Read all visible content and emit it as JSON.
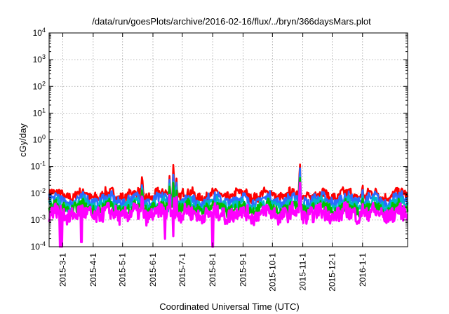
{
  "chart_data": {
    "type": "line",
    "title": "/data/run/goesPlots/archive/2016-02-16/flux/../bryn/366daysMars.plot",
    "xlabel": "Coordinated Universal Time (UTC)",
    "ylabel": "cGy/day",
    "xlim": [
      "2015-02-15",
      "2016-02-16"
    ],
    "ylim": [
      0.0001,
      10000
    ],
    "yscale": "log",
    "grid": true,
    "x_ticks": [
      "2015-3-1",
      "2015-4-1",
      "2015-5-1",
      "2015-6-1",
      "2015-7-1",
      "2015-8-1",
      "2015-9-1",
      "2015-10-1",
      "2015-11-1",
      "2015-12-1",
      "2016-1-1"
    ],
    "y_ticks": [
      {
        "base": "10",
        "exp": "-4",
        "value": 0.0001
      },
      {
        "base": "10",
        "exp": "-3",
        "value": 0.001
      },
      {
        "base": "10",
        "exp": "-2",
        "value": 0.01
      },
      {
        "base": "10",
        "exp": "-1",
        "value": 0.1
      },
      {
        "base": "10",
        "exp": "0",
        "value": 1
      },
      {
        "base": "10",
        "exp": "1",
        "value": 10
      },
      {
        "base": "10",
        "exp": "2",
        "value": 100
      },
      {
        "base": "10",
        "exp": "3",
        "value": 1000
      },
      {
        "base": "10",
        "exp": "4",
        "value": 10000
      }
    ],
    "series": [
      {
        "color": "#ff0000",
        "baseline": 0.0085,
        "spread": 0.18
      },
      {
        "color": "#2a6cff",
        "baseline": 0.0055,
        "spread": 0.2
      },
      {
        "color": "#00b8c8",
        "baseline": 0.0035,
        "spread": 0.2
      },
      {
        "color": "#00c000",
        "baseline": 0.0028,
        "spread": 0.2
      },
      {
        "color": "#ff00ff",
        "baseline": 0.0017,
        "spread": 0.28
      }
    ],
    "events": [
      {
        "date": "2015-05-21",
        "peaks": [
          0.065,
          0.04,
          0.025,
          0.02,
          0.012
        ]
      },
      {
        "date": "2015-06-18",
        "peaks": [
          0.06,
          0.045,
          0.03,
          0.025,
          0.012
        ]
      },
      {
        "date": "2015-06-22",
        "peaks": [
          0.3,
          0.1,
          0.06,
          0.05,
          0.03
        ]
      },
      {
        "date": "2015-06-25",
        "peaks": [
          0.04,
          0.03,
          0.02,
          0.015,
          0.008
        ]
      },
      {
        "date": "2015-10-29",
        "peaks": [
          0.3,
          0.2,
          0.1,
          0.08,
          0.05
        ]
      },
      {
        "date": "2016-01-01",
        "peaks": [
          0.03,
          0.02,
          0.012,
          0.01,
          0.006
        ]
      }
    ],
    "dips": [
      {
        "date": "2015-02-26",
        "value": 0.0001
      },
      {
        "date": "2015-02-28",
        "value": 0.0001
      },
      {
        "date": "2015-03-20",
        "value": 0.00015
      },
      {
        "date": "2015-06-13",
        "value": 0.0002
      },
      {
        "date": "2015-06-22",
        "value": 0.00025
      },
      {
        "date": "2015-08-01",
        "value": 0.0001
      }
    ]
  }
}
